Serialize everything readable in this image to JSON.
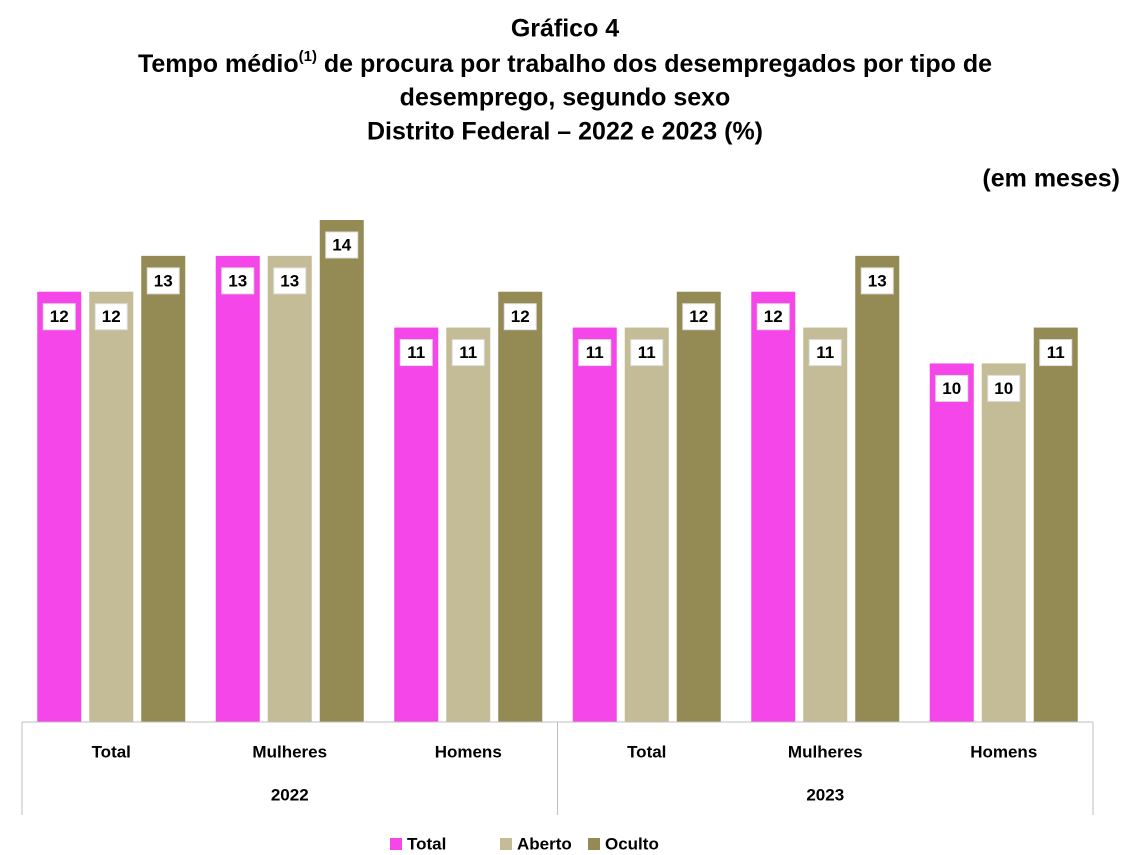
{
  "chart_data": {
    "type": "bar",
    "title": "Gráfico 4",
    "subtitle_parts": [
      "Tempo médio",
      "(1)",
      " de procura por trabalho dos desempregados por tipo de",
      "desemprego, segundo sexo",
      "Distrito Federal – 2022 e 2023 (%)"
    ],
    "unit_note": "(em meses)",
    "categories": [
      "Total",
      "Mulheres",
      "Homens",
      "Total",
      "Mulheres",
      "Homens"
    ],
    "groups": [
      "2022",
      "2023"
    ],
    "series": [
      {
        "name": "Total",
        "color": "#f446e9",
        "values": [
          12,
          13,
          11,
          11,
          12,
          10
        ]
      },
      {
        "name": "Aberto",
        "color": "#c4bc96",
        "values": [
          12,
          13,
          11,
          11,
          11,
          10
        ]
      },
      {
        "name": "Oculto",
        "color": "#948a54",
        "values": [
          13,
          14,
          12,
          12,
          13,
          11
        ]
      }
    ],
    "ylim": [
      0,
      14
    ]
  }
}
